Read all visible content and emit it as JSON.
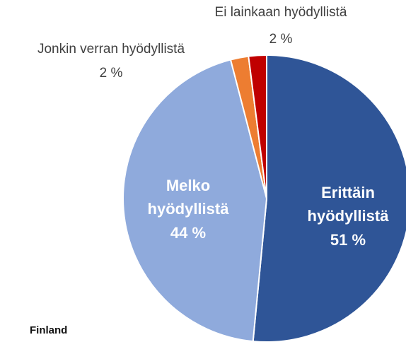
{
  "chart_data": {
    "type": "pie",
    "categories": [
      "Erittäin hyödyllistä",
      "Melko hyödyllistä",
      "Jonkin verran hyödyllistä",
      "Ei lainkaan hyödyllistä"
    ],
    "values": [
      51,
      44,
      2,
      2
    ],
    "value_labels": [
      "51 %",
      "44 %",
      "2 %",
      "2 %"
    ],
    "colors": [
      "#2f5597",
      "#8faadc",
      "#ed7d31",
      "#c00000"
    ],
    "source": "Finland"
  }
}
